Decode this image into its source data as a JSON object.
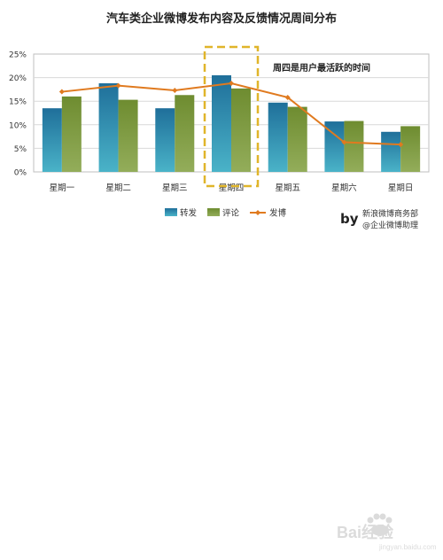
{
  "chart_data": {
    "type": "bar",
    "title": "汽车类企业微博发布内容及反馈情况周间分布",
    "categories": [
      "星期一",
      "星期二",
      "星期三",
      "星期四",
      "星期五",
      "星期六",
      "星期日"
    ],
    "series": [
      {
        "name": "转发",
        "type": "bar",
        "values": [
          13.5,
          18.8,
          13.5,
          20.5,
          14.7,
          10.7,
          8.5
        ]
      },
      {
        "name": "评论",
        "type": "bar",
        "values": [
          16.0,
          15.3,
          16.3,
          17.7,
          13.8,
          10.8,
          9.7
        ]
      },
      {
        "name": "发博",
        "type": "line",
        "values": [
          17.0,
          18.3,
          17.3,
          18.8,
          15.8,
          6.3,
          5.8
        ]
      }
    ],
    "ylim": [
      0,
      25
    ],
    "yticks": [
      "0%",
      "5%",
      "10%",
      "15%",
      "20%",
      "25%"
    ],
    "ytick_values": [
      0,
      5,
      10,
      15,
      20,
      25
    ],
    "xlabel": "",
    "ylabel": "",
    "grid": true,
    "legend_position": "bottom",
    "annotation": "周四是用户最活跃的时间",
    "highlight_category": "星期四",
    "colors": {
      "转发": "#2b8fb0",
      "评论": "#7d9a3f",
      "发博": "#e07a1f",
      "highlight": "#e0b52a",
      "grid": "#d9d9d9"
    }
  },
  "credit": {
    "by": "by",
    "line1": "新浪微博商务部",
    "line2": "@企业微博助理"
  },
  "watermark": {
    "text": "Bai经验",
    "sub": "jingyan.baidu.com"
  }
}
